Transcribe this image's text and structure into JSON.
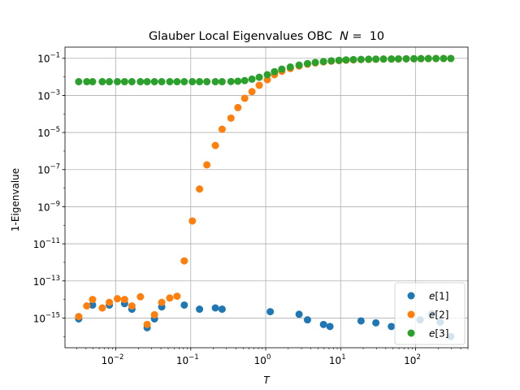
{
  "chart_data": {
    "type": "scatter",
    "title": "Glauber Local Eigenvalues OBC  N =  10",
    "title_parts": {
      "prefix": "Glauber Local Eigenvalues OBC  ",
      "var": "N",
      "suffix": " =  10"
    },
    "xlabel": "T",
    "ylabel": "1-Eigenvalue",
    "xscale": "log",
    "yscale": "log",
    "xlim": [
      0.0021,
      500
    ],
    "ylim": [
      2.5e-17,
      0.4
    ],
    "x_ticks": [
      {
        "value": 0.01,
        "base": "10",
        "exp": "−2"
      },
      {
        "value": 0.1,
        "base": "10",
        "exp": "−1"
      },
      {
        "value": 1,
        "base": "10",
        "exp": "0"
      },
      {
        "value": 10,
        "base": "10",
        "exp": "1"
      },
      {
        "value": 100,
        "base": "10",
        "exp": "2"
      }
    ],
    "y_ticks": [
      {
        "value": 1e-15,
        "base": "10",
        "exp": "−15"
      },
      {
        "value": 1e-13,
        "base": "10",
        "exp": "−13"
      },
      {
        "value": 1e-11,
        "base": "10",
        "exp": "−11"
      },
      {
        "value": 1e-09,
        "base": "10",
        "exp": "−9"
      },
      {
        "value": 1e-07,
        "base": "10",
        "exp": "−7"
      },
      {
        "value": 1e-05,
        "base": "10",
        "exp": "−5"
      },
      {
        "value": 0.001,
        "base": "10",
        "exp": "−3"
      },
      {
        "value": 0.1,
        "base": "10",
        "exp": "−1"
      }
    ],
    "grid": true,
    "legend_position": "bottom-right",
    "series": [
      {
        "name": "e[1]",
        "label_parts": {
          "var": "e",
          "suffix": "[1]"
        },
        "color": "#1f77b4",
        "x": [
          0.0032,
          0.0049,
          0.0082,
          0.0131,
          0.0164,
          0.0262,
          0.0328,
          0.041,
          0.082,
          0.131,
          0.213,
          0.262,
          1.15,
          2.79,
          3.61,
          5.9,
          7.2,
          18.7,
          29.5,
          47.5,
          115,
          164,
          213,
          295
        ],
        "y": [
          9e-16,
          5e-15,
          5e-15,
          6e-15,
          3e-15,
          3e-16,
          9e-16,
          4e-15,
          5e-15,
          3e-15,
          3.5e-15,
          3e-15,
          2.2e-15,
          1.6e-15,
          8e-16,
          4.5e-16,
          3.5e-16,
          7e-16,
          5.5e-16,
          3.5e-16,
          8e-16,
          1.7e-15,
          6e-16,
          1e-16
        ]
      },
      {
        "name": "e[2]",
        "label_parts": {
          "var": "e",
          "suffix": "[2]"
        },
        "color": "#ff7f0e",
        "x": [
          0.0032,
          0.0041,
          0.0049,
          0.0066,
          0.0082,
          0.0105,
          0.0131,
          0.0164,
          0.0213,
          0.0262,
          0.0328,
          0.041,
          0.0525,
          0.0656,
          0.082,
          0.105,
          0.131,
          0.164,
          0.213,
          0.262,
          0.344,
          0.426,
          0.525,
          0.656,
          0.82,
          1.05,
          1.31,
          1.64,
          2.13,
          2.79,
          3.61,
          4.59,
          5.9,
          7.5,
          9.5,
          11.8,
          14.8,
          18.7,
          23.6,
          29.5,
          37.3,
          47.5,
          59,
          75,
          95,
          118,
          148,
          187,
          236,
          295
        ],
        "y": [
          1.2e-15,
          4.5e-15,
          1e-14,
          3.5e-15,
          7e-15,
          1.1e-14,
          1e-14,
          4.5e-15,
          1.4e-14,
          4.5e-16,
          1.5e-15,
          7e-15,
          1.2e-14,
          1.5e-14,
          1.2e-12,
          1.7e-10,
          9e-09,
          1.8e-07,
          2e-06,
          1.5e-05,
          6e-05,
          0.00022,
          0.0007,
          0.0016,
          0.0035,
          0.007,
          0.013,
          0.02,
          0.028,
          0.038,
          0.048,
          0.056,
          0.064,
          0.07,
          0.075,
          0.079,
          0.082,
          0.085,
          0.087,
          0.089,
          0.09,
          0.091,
          0.092,
          0.093,
          0.094,
          0.095,
          0.096,
          0.097,
          0.097,
          0.098
        ]
      },
      {
        "name": "e[3]",
        "label_parts": {
          "var": "e",
          "suffix": "[3]"
        },
        "color": "#2ca02c",
        "x": [
          0.0032,
          0.0041,
          0.0049,
          0.0066,
          0.0082,
          0.0105,
          0.0131,
          0.0164,
          0.0213,
          0.0262,
          0.0328,
          0.041,
          0.0525,
          0.0656,
          0.082,
          0.105,
          0.131,
          0.164,
          0.213,
          0.262,
          0.344,
          0.426,
          0.525,
          0.656,
          0.82,
          1.05,
          1.31,
          1.64,
          2.13,
          2.79,
          3.61,
          4.59,
          5.9,
          7.5,
          9.5,
          11.8,
          14.8,
          18.7,
          23.6,
          29.5,
          37.3,
          47.5,
          59,
          75,
          95,
          118,
          148,
          187,
          236,
          295
        ],
        "y": [
          0.0055,
          0.0055,
          0.0055,
          0.0055,
          0.0055,
          0.0055,
          0.0055,
          0.0055,
          0.0055,
          0.0055,
          0.0055,
          0.0055,
          0.0055,
          0.0055,
          0.0055,
          0.0055,
          0.0055,
          0.0055,
          0.0055,
          0.0055,
          0.0056,
          0.0058,
          0.0063,
          0.0075,
          0.0095,
          0.013,
          0.019,
          0.026,
          0.034,
          0.043,
          0.052,
          0.06,
          0.067,
          0.073,
          0.078,
          0.082,
          0.085,
          0.087,
          0.089,
          0.09,
          0.091,
          0.092,
          0.093,
          0.094,
          0.095,
          0.096,
          0.097,
          0.097,
          0.098,
          0.098
        ]
      }
    ]
  }
}
